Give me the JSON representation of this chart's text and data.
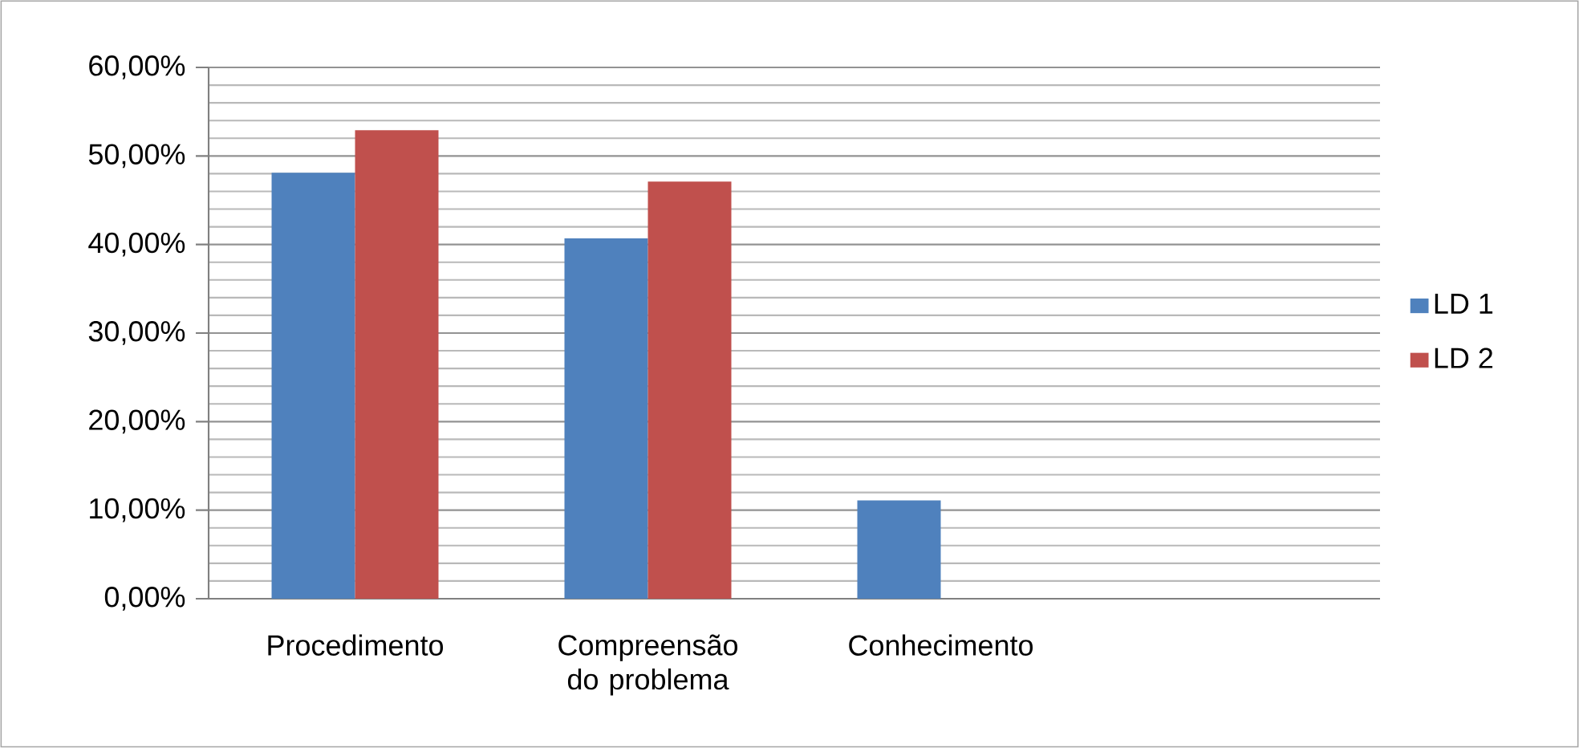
{
  "chart_data": {
    "type": "bar",
    "categories": [
      "Procedimento",
      "Compreensão do problema",
      "Conhecimento",
      null
    ],
    "series": [
      {
        "name": "LD 1",
        "color": "#4f81bd",
        "values": [
          48.1,
          40.7,
          11.1,
          null
        ]
      },
      {
        "name": "LD 2",
        "color": "#c0504d",
        "values": [
          52.9,
          47.1,
          null,
          null
        ]
      }
    ],
    "ylim": [
      0,
      60
    ],
    "yticks": [
      {
        "value": 0,
        "label": "0,00%"
      },
      {
        "value": 10,
        "label": "10,00%"
      },
      {
        "value": 20,
        "label": "20,00%"
      },
      {
        "value": 30,
        "label": "30,00%"
      },
      {
        "value": 40,
        "label": "40,00%"
      },
      {
        "value": 50,
        "label": "50,00%"
      },
      {
        "value": 60,
        "label": "60,00%"
      }
    ],
    "grid": "y",
    "legend": "right"
  }
}
